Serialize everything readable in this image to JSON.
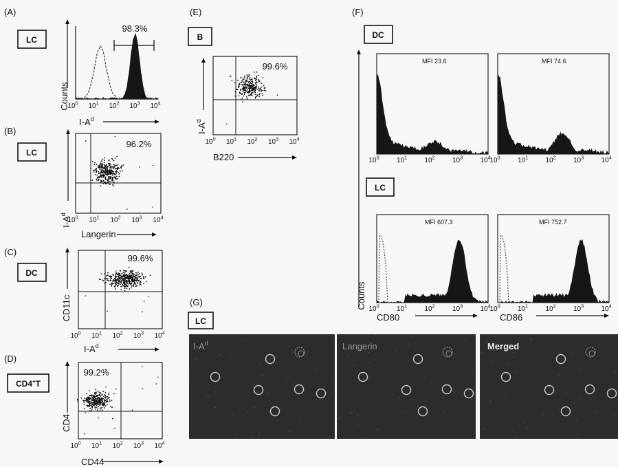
{
  "panels": {
    "A": {
      "letter": "(A)",
      "tag": "LC",
      "pct": "98.3%",
      "ylabel": "Counts",
      "xlabel": "I-A",
      "xsup": "d"
    },
    "B": {
      "letter": "(B)",
      "tag": "LC",
      "pct": "96.2%",
      "ylabel": "I-A",
      "ysup": "d",
      "xlabel": "Langerin"
    },
    "C": {
      "letter": "(C)",
      "tag": "DC",
      "pct": "99.6%",
      "ylabel": "CD11c",
      "xlabel": "I-A",
      "xsup": "d"
    },
    "D": {
      "letter": "(D)",
      "tag": "CD4",
      "tagsup": "+",
      "tagrest": "T",
      "pct": "99.2%",
      "ylabel": "CD4",
      "xlabel": "CD44"
    },
    "E": {
      "letter": "(E)",
      "tag": "B",
      "pct": "99.6%",
      "ylabel": "I-A",
      "ysup": "d",
      "xlabel": "B220"
    },
    "F": {
      "letter": "(F)",
      "tag_top": "DC",
      "tag_bottom": "LC",
      "ylabel": "Counts",
      "mfi": [
        "MFI  23.6",
        "MFI  74.6",
        "MFI  607.3",
        "MFI  752.7"
      ],
      "xlabels": [
        "CD80",
        "CD86"
      ]
    },
    "G": {
      "letter": "(G)",
      "tag": "LC",
      "images": [
        "I-A",
        "Langerin",
        "Merged"
      ],
      "image1_sup": "d"
    }
  },
  "tick_labels": [
    "10",
    "10",
    "10",
    "10",
    "10"
  ],
  "tick_exponents": [
    "0",
    "1",
    "2",
    "3",
    "4"
  ],
  "chart_data": [
    {
      "type": "histogram",
      "panel": "A",
      "xscale": "log",
      "xlim": [
        1,
        10000
      ],
      "series": [
        {
          "name": "",
          "style": "dashed",
          "peak_x": 8
        },
        {
          "name": "",
          "style": "filled",
          "peak_x": 500
        }
      ],
      "gate": "98.3%"
    },
    {
      "type": "scatter",
      "panel": "B",
      "xscale": "log",
      "yscale": "log",
      "quadrant_pct": "96.2%"
    },
    {
      "type": "scatter",
      "panel": "C",
      "xscale": "log",
      "yscale": "log",
      "quadrant_pct": "99.6%"
    },
    {
      "type": "scatter",
      "panel": "D",
      "xscale": "log",
      "yscale": "log",
      "quadrant_pct": "99.2%"
    },
    {
      "type": "scatter",
      "panel": "E",
      "xscale": "log",
      "yscale": "log",
      "quadrant_pct": "99.6%"
    },
    {
      "type": "histogram",
      "panel": "F",
      "xscale": "log",
      "xlim": [
        1,
        10000
      ],
      "plots": [
        {
          "marker": "CD80",
          "cell": "DC",
          "mfi": 23.6
        },
        {
          "marker": "CD86",
          "cell": "DC",
          "mfi": 74.6
        },
        {
          "marker": "CD80",
          "cell": "LC",
          "mfi": 607.3
        },
        {
          "marker": "CD86",
          "cell": "LC",
          "mfi": 752.7
        }
      ]
    }
  ],
  "colors": {
    "fill": "#161616",
    "micro_bg": "#2b2d2b"
  }
}
